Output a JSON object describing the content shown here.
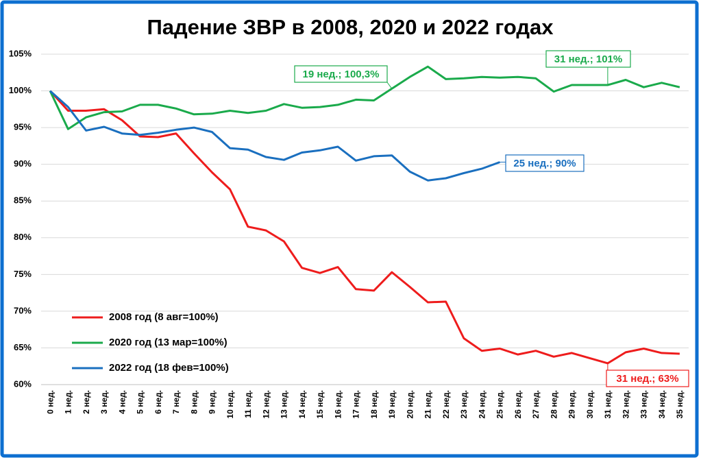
{
  "chart_data": {
    "type": "line",
    "title": "Падение ЗВР в 2008, 2020 и 2022 годах",
    "categories": [
      "0 нед.",
      "1 нед.",
      "2 нед.",
      "3 нед.",
      "4 нед.",
      "5 нед.",
      "6 нед.",
      "7 нед.",
      "8 нед.",
      "9 нед.",
      "10 нед.",
      "11 нед.",
      "12 нед.",
      "13 нед.",
      "14 нед.",
      "15 нед.",
      "16 нед.",
      "17 нед.",
      "18 нед.",
      "19 нед.",
      "20 нед.",
      "21 нед.",
      "22 нед.",
      "23 нед.",
      "24 нед.",
      "25 нед.",
      "26 нед.",
      "27 нед.",
      "28 нед.",
      "29 нед.",
      "30 нед.",
      "31 нед.",
      "32 нед.",
      "33 нед.",
      "34 нед.",
      "35 нед."
    ],
    "series": [
      {
        "name": "2008 год (8 авг=100%)",
        "color": "#ee1c1c",
        "values": [
          100,
          97.3,
          97.3,
          97.5,
          96.0,
          93.8,
          93.7,
          94.2,
          91.5,
          88.9,
          86.6,
          81.5,
          81.0,
          79.5,
          75.9,
          75.2,
          76.0,
          73.0,
          72.8,
          75.3,
          73.3,
          71.2,
          71.3,
          66.3,
          64.6,
          64.9,
          64.1,
          64.6,
          63.8,
          64.3,
          63.6,
          62.9,
          64.4,
          64.9,
          64.3,
          64.2
        ]
      },
      {
        "name": "2020 год (13 мар=100%)",
        "color": "#1aaa4b",
        "values": [
          100,
          94.8,
          96.4,
          97.1,
          97.2,
          98.1,
          98.1,
          97.6,
          96.8,
          96.9,
          97.3,
          97.0,
          97.3,
          98.2,
          97.7,
          97.8,
          98.1,
          98.8,
          98.7,
          100.3,
          101.9,
          103.3,
          101.6,
          101.7,
          101.9,
          101.8,
          101.9,
          101.7,
          99.9,
          100.8,
          100.8,
          100.8,
          101.5,
          100.5,
          101.1,
          100.5
        ]
      },
      {
        "name": "2022 год (18 фев=100%)",
        "color": "#1a6fbf",
        "values": [
          100,
          97.8,
          94.6,
          95.1,
          94.2,
          94.0,
          94.3,
          94.7,
          95.0,
          94.4,
          92.2,
          92.0,
          91.0,
          90.6,
          91.6,
          91.9,
          92.4,
          90.5,
          91.1,
          91.2,
          89.0,
          87.8,
          88.1,
          88.8,
          89.4,
          90.3,
          null,
          null,
          null,
          null,
          null,
          null,
          null,
          null,
          null,
          null
        ]
      }
    ],
    "ylim": [
      60,
      105
    ],
    "yticks": [
      {
        "value": 60,
        "label": "60%"
      },
      {
        "value": 65,
        "label": "65%"
      },
      {
        "value": 70,
        "label": "70%"
      },
      {
        "value": 75,
        "label": "75%"
      },
      {
        "value": 80,
        "label": "80%"
      },
      {
        "value": 85,
        "label": "85%"
      },
      {
        "value": 90,
        "label": "90%"
      },
      {
        "value": 95,
        "label": "95%"
      },
      {
        "value": 100,
        "label": "100%"
      },
      {
        "value": 105,
        "label": "105%"
      }
    ],
    "grid": true,
    "legend": "lower left",
    "annotations": [
      {
        "text": "19 нед.; 100,3%",
        "color": "#1aaa4b"
      },
      {
        "text": "31 нед.; 101%",
        "color": "#1aaa4b"
      },
      {
        "text": "25 нед.; 90%",
        "color": "#1a6fbf"
      },
      {
        "text": "31 нед.; 63%",
        "color": "#ee1c1c"
      }
    ]
  }
}
